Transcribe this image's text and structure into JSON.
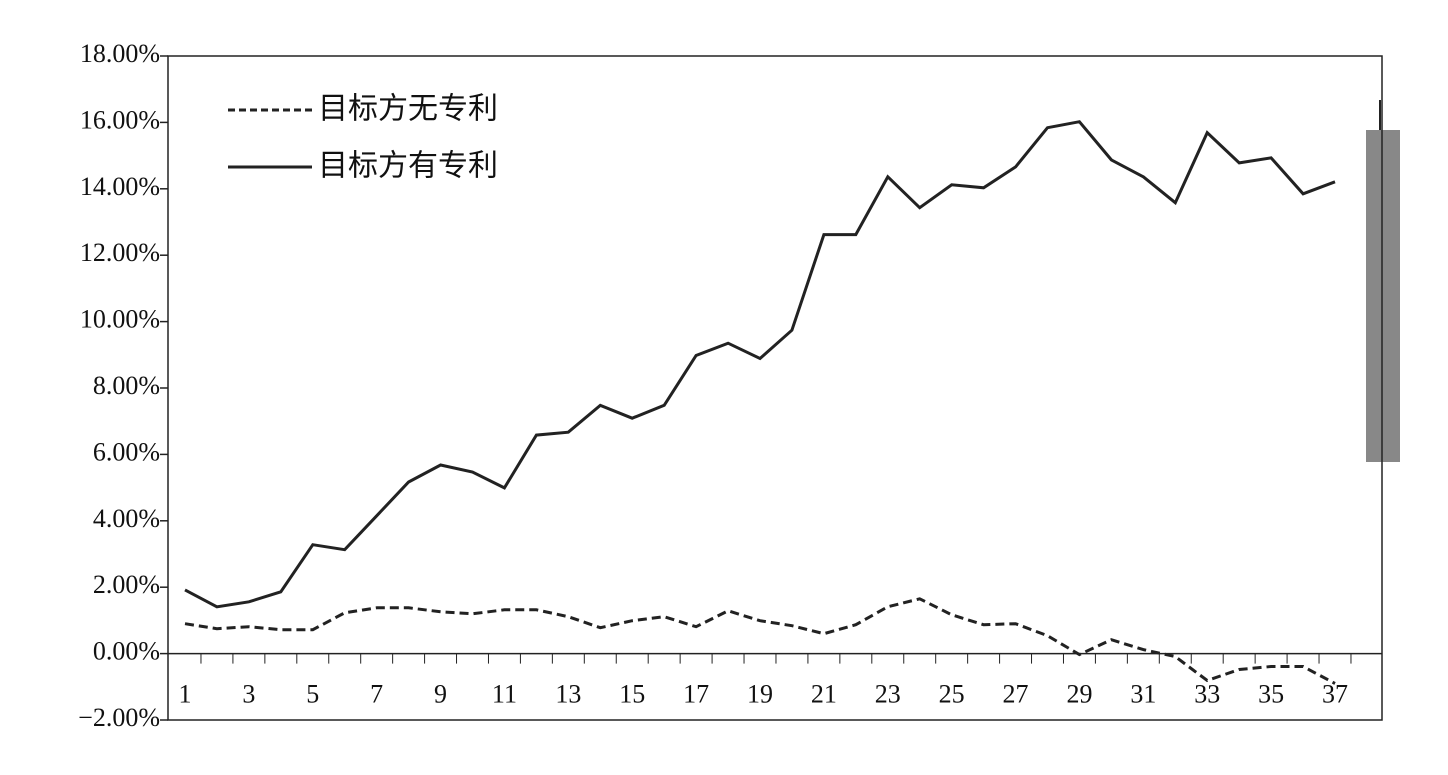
{
  "chart_data": {
    "type": "line",
    "categories": [
      "1",
      null,
      "3",
      null,
      "5",
      null,
      "7",
      null,
      "9",
      null,
      "11",
      null,
      "13",
      null,
      "15",
      null,
      "17",
      null,
      "19",
      null,
      "21",
      null,
      "23",
      null,
      "25",
      null,
      "27",
      null,
      "29",
      null,
      "31",
      null,
      "33",
      null,
      "35",
      null,
      "37"
    ],
    "series": [
      {
        "name": "目标方无专利",
        "color": "#222222",
        "line_style": "dashed",
        "values": [
          0.9,
          0.75,
          0.81,
          0.72,
          0.72,
          1.23,
          1.38,
          1.38,
          1.26,
          1.2,
          1.32,
          1.32,
          1.11,
          0.78,
          0.99,
          1.11,
          0.81,
          1.29,
          0.99,
          0.84,
          0.6,
          0.87,
          1.41,
          1.65,
          1.17,
          0.87,
          0.9,
          0.54,
          -0.03,
          0.42,
          0.12,
          -0.09,
          -0.81,
          -0.48,
          -0.39,
          -0.39,
          -0.9
        ]
      },
      {
        "name": "目标方有专利",
        "color": "#222222",
        "line_style": "solid",
        "values": [
          1.92,
          1.41,
          1.56,
          1.86,
          3.28,
          3.13,
          4.15,
          5.17,
          5.68,
          5.47,
          4.99,
          6.58,
          6.67,
          7.48,
          7.09,
          7.48,
          8.98,
          9.35,
          8.89,
          9.74,
          12.62,
          12.62,
          14.36,
          13.43,
          14.12,
          14.03,
          14.66,
          15.84,
          16.02,
          14.87,
          14.36,
          13.58,
          15.69,
          14.78,
          14.93,
          13.85,
          14.21
        ]
      }
    ],
    "ylim": [
      -2,
      18
    ],
    "yticks": [
      {
        "value": -2,
        "label": "−2.00%"
      },
      {
        "value": 0,
        "label": "0.00%"
      },
      {
        "value": 2,
        "label": "2.00%"
      },
      {
        "value": 4,
        "label": "4.00%"
      },
      {
        "value": 6,
        "label": "6.00%"
      },
      {
        "value": 8,
        "label": "8.00%"
      },
      {
        "value": 10,
        "label": "10.00%"
      },
      {
        "value": 12,
        "label": "12.00%"
      },
      {
        "value": 14,
        "label": "14.00%"
      },
      {
        "value": 16,
        "label": "16.00%"
      },
      {
        "value": 18,
        "label": "18.00%"
      }
    ],
    "grid": false,
    "legend": "upper left"
  }
}
